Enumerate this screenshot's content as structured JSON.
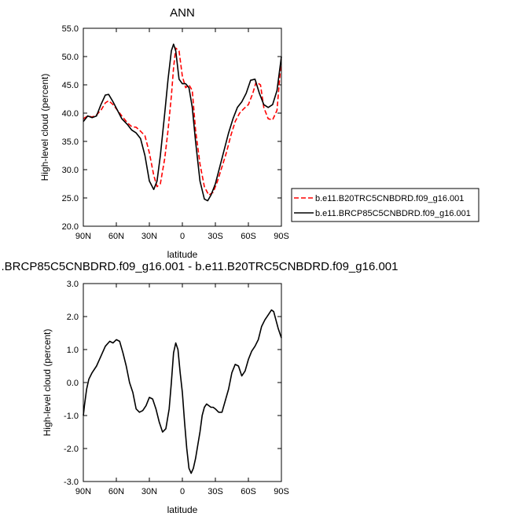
{
  "chart_data": [
    {
      "type": "line",
      "title": "ANN",
      "xlabel": "latitude",
      "ylabel": "High-level cloud (percent)",
      "xlim": [
        90,
        -90
      ],
      "ylim": [
        20.0,
        55.0
      ],
      "xticks": [
        {
          "value": 90,
          "label": "90N"
        },
        {
          "value": 60,
          "label": "60N"
        },
        {
          "value": 30,
          "label": "30N"
        },
        {
          "value": 0,
          "label": "0"
        },
        {
          "value": -30,
          "label": "30S"
        },
        {
          "value": -60,
          "label": "60S"
        },
        {
          "value": -90,
          "label": "90S"
        }
      ],
      "yticks": [
        {
          "value": 20,
          "label": "20.0"
        },
        {
          "value": 25,
          "label": "25.0"
        },
        {
          "value": 30,
          "label": "30.0"
        },
        {
          "value": 35,
          "label": "35.0"
        },
        {
          "value": 40,
          "label": "40.0"
        },
        {
          "value": 45,
          "label": "45.0"
        },
        {
          "value": 50,
          "label": "50.0"
        },
        {
          "value": 55,
          "label": "55.0"
        }
      ],
      "legend_position": "right-bottom outside",
      "series": [
        {
          "name": "b.e11.B20TRC5CNBDRD.f09_g16.001",
          "color": "#ff0000",
          "dash": "dashed",
          "x": [
            90,
            86,
            82,
            78,
            74,
            70,
            67,
            63,
            59,
            55,
            50,
            46,
            42,
            38,
            34,
            30,
            26,
            23,
            20,
            16,
            13,
            10,
            8,
            6,
            3,
            0,
            -3,
            -6,
            -9,
            -12,
            -16,
            -20,
            -24,
            -28,
            -32,
            -36,
            -40,
            -44,
            -48,
            -52,
            -56,
            -60,
            -64,
            -67,
            -71,
            -74,
            -78,
            -82,
            -86,
            -90
          ],
          "values": [
            39.0,
            39.5,
            39.3,
            39.7,
            40.5,
            41.8,
            42.2,
            41.5,
            40.5,
            39.5,
            38.3,
            37.6,
            37.5,
            36.8,
            36.0,
            33.0,
            29.0,
            27.0,
            27.5,
            32.0,
            37.0,
            43.0,
            48.0,
            51.5,
            51.0,
            46.5,
            44.5,
            45.0,
            44.0,
            37.0,
            31.0,
            27.0,
            25.5,
            26.0,
            28.0,
            30.5,
            33.0,
            36.0,
            38.5,
            40.0,
            40.8,
            41.5,
            43.5,
            45.5,
            45.0,
            41.0,
            39.0,
            38.8,
            40.5,
            49.8
          ]
        },
        {
          "name": "b.e11.BRCP85C5CNBDRD.f09_g16.001",
          "color": "#000000",
          "dash": "solid",
          "x": [
            90,
            86,
            82,
            78,
            74,
            70,
            67,
            63,
            59,
            55,
            50,
            46,
            42,
            38,
            34,
            30,
            26,
            23,
            20,
            16,
            13,
            10,
            8,
            6,
            3,
            0,
            -3,
            -6,
            -9,
            -12,
            -16,
            -20,
            -23,
            -26,
            -30,
            -34,
            -38,
            -42,
            -46,
            -50,
            -54,
            -58,
            -62,
            -66,
            -70,
            -74,
            -78,
            -82,
            -86,
            -90
          ],
          "values": [
            38.5,
            39.5,
            39.2,
            39.5,
            41.5,
            43.2,
            43.3,
            42.0,
            40.5,
            39.0,
            38.0,
            37.0,
            36.5,
            35.5,
            32.5,
            28.0,
            26.5,
            28.0,
            32.5,
            40.0,
            46.0,
            51.0,
            52.2,
            51.0,
            46.0,
            45.2,
            45.2,
            44.5,
            41.0,
            35.0,
            28.0,
            24.8,
            24.5,
            25.5,
            27.5,
            30.5,
            33.5,
            36.5,
            39.0,
            41.0,
            42.0,
            43.5,
            45.8,
            46.0,
            43.5,
            41.5,
            41.0,
            41.5,
            44.0,
            50.0
          ]
        }
      ]
    },
    {
      "type": "line",
      "title": ".BRCP85C5CNBDRD.f09_g16.001 - b.e11.B20TRC5CNBDRD.f09_g16.001",
      "xlabel": "latitude",
      "ylabel": "High-level cloud (percent)",
      "xlim": [
        90,
        -90
      ],
      "ylim": [
        -3.0,
        3.0
      ],
      "xticks": [
        {
          "value": 90,
          "label": "90N"
        },
        {
          "value": 60,
          "label": "60N"
        },
        {
          "value": 30,
          "label": "30N"
        },
        {
          "value": 0,
          "label": "0"
        },
        {
          "value": -30,
          "label": "30S"
        },
        {
          "value": -60,
          "label": "60S"
        },
        {
          "value": -90,
          "label": "90S"
        }
      ],
      "yticks": [
        {
          "value": -3,
          "label": "-3.0"
        },
        {
          "value": -2,
          "label": "-2.0"
        },
        {
          "value": -1,
          "label": "-1.0"
        },
        {
          "value": 0,
          "label": "0.0"
        },
        {
          "value": 1,
          "label": "1.0"
        },
        {
          "value": 2,
          "label": "2.0"
        },
        {
          "value": 3,
          "label": "3.0"
        }
      ],
      "series": [
        {
          "color": "#000000",
          "dash": "solid",
          "x": [
            90,
            89,
            87,
            85,
            82,
            78,
            74,
            70,
            66,
            63,
            60,
            57,
            54,
            51,
            48,
            45,
            42,
            39,
            36,
            33,
            30,
            27,
            24,
            21,
            18,
            15,
            12,
            10,
            8,
            6,
            4,
            2,
            0,
            -2,
            -4,
            -6,
            -8,
            -10,
            -12,
            -14,
            -16,
            -18,
            -20,
            -22,
            -24,
            -26,
            -28,
            -30,
            -33,
            -36,
            -39,
            -42,
            -45,
            -48,
            -51,
            -54,
            -57,
            -60,
            -63,
            -66,
            -69,
            -72,
            -75,
            -78,
            -81,
            -83,
            -85,
            -87,
            -89,
            -90
          ],
          "values": [
            -1.0,
            -0.7,
            -0.2,
            0.1,
            0.3,
            0.5,
            0.8,
            1.1,
            1.25,
            1.2,
            1.3,
            1.25,
            0.9,
            0.5,
            0.0,
            -0.3,
            -0.8,
            -0.9,
            -0.85,
            -0.7,
            -0.45,
            -0.5,
            -0.8,
            -1.2,
            -1.5,
            -1.4,
            -0.8,
            0.0,
            0.9,
            1.2,
            1.0,
            0.3,
            -0.3,
            -1.2,
            -2.0,
            -2.6,
            -2.75,
            -2.6,
            -2.3,
            -1.9,
            -1.5,
            -1.0,
            -0.75,
            -0.65,
            -0.7,
            -0.75,
            -0.75,
            -0.8,
            -0.9,
            -0.9,
            -0.55,
            -0.2,
            0.3,
            0.55,
            0.5,
            0.2,
            0.35,
            0.7,
            0.95,
            1.1,
            1.3,
            1.7,
            1.9,
            2.05,
            2.2,
            2.15,
            1.9,
            1.65,
            1.45,
            1.35
          ]
        }
      ]
    }
  ]
}
